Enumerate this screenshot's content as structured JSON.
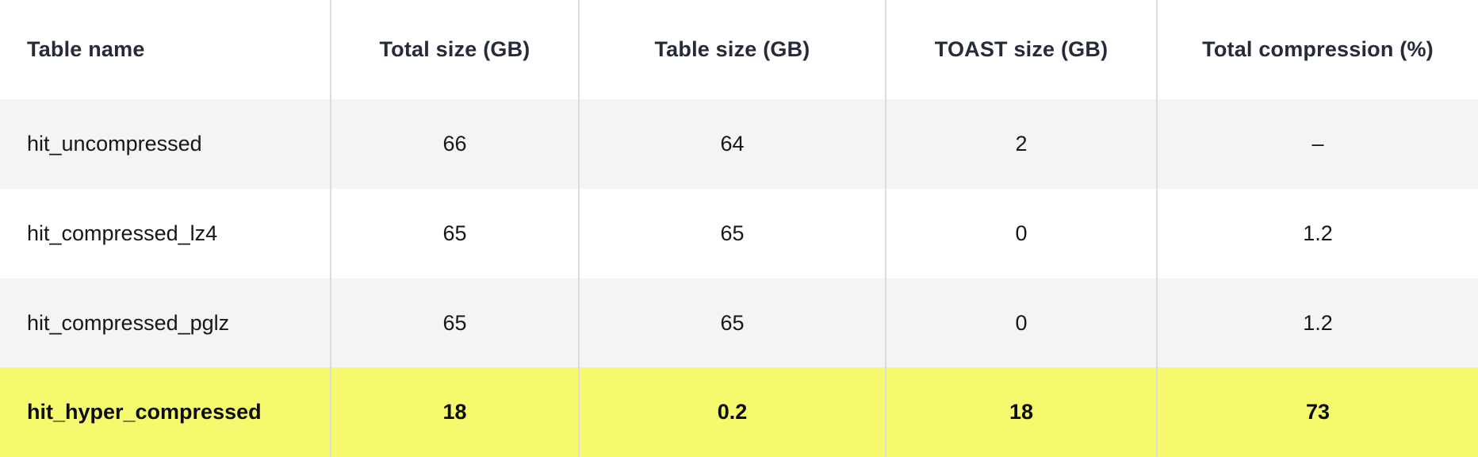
{
  "chart_data": {
    "type": "table",
    "title": "",
    "columns": [
      "Table name",
      "Total size (GB)",
      "Table size (GB)",
      "TOAST size (GB)",
      "Total compression (%)"
    ],
    "rows": [
      [
        "hit_uncompressed",
        "66",
        "64",
        "2",
        "–"
      ],
      [
        "hit_compressed_lz4",
        "65",
        "65",
        "0",
        "1.2"
      ],
      [
        "hit_compressed_pglz",
        "65",
        "65",
        "0",
        "1.2"
      ],
      [
        "hit_hyper_compressed",
        "18",
        "0.2",
        "18",
        "73"
      ]
    ],
    "highlighted_row": "hit_hyper_compressed",
    "layout_hints": {
      "zebra_striping": true,
      "vertical_dividers": true,
      "numeric_columns_centered": true
    }
  },
  "colors": {
    "highlight_row_bg": "#f5f96e",
    "zebra_row_bg": "#f4f4f4",
    "divider": "#dcdcdc",
    "header_text": "#262b3a",
    "body_text": "#171717"
  }
}
